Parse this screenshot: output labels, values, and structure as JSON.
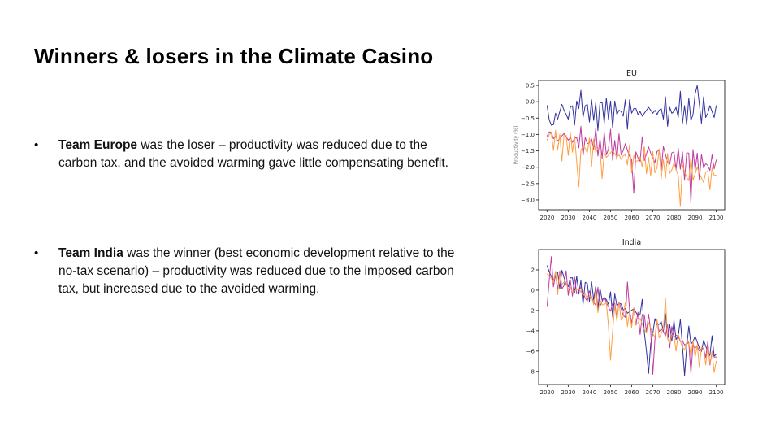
{
  "slide": {
    "title": "Winners & losers in the Climate Casino",
    "bullet_char": "•",
    "bullets": [
      {
        "lead": "Team Europe",
        "text": " was the loser – productivity was reduced due to the carbon tax, and the avoided warming gave little compensating benefit."
      },
      {
        "lead": "Team India",
        "text": " was the winner (best economic development relative to the no-tax scenario) – productivity was reduced due to the imposed carbon tax, but increased due to the avoided warming."
      }
    ]
  },
  "colors": {
    "series_blue": "#32329e",
    "series_magenta": "#c13a9c",
    "series_orange": "#ff9f45",
    "axis": "#3a3a3a",
    "tick_label": "#262626",
    "ylabel_gray": "#808080"
  },
  "chart_data": [
    {
      "type": "line",
      "title": "EU",
      "ylabel": "Productivity (%)",
      "xlabel": "",
      "grid": false,
      "legend": null,
      "x_start": 2020,
      "x_step": 1,
      "xlim": [
        2016,
        2104
      ],
      "ylim": [
        -3.3,
        0.65
      ],
      "xticks": [
        2020,
        2030,
        2040,
        2050,
        2060,
        2070,
        2080,
        2090,
        2100
      ],
      "yticks": [
        0.5,
        0.0,
        -0.5,
        -1.0,
        -1.5,
        -2.0,
        -2.5,
        -3.0
      ],
      "ytick_labels": [
        "0.5",
        "0.0",
        "−0.5",
        "−1.0",
        "−1.5",
        "−2.0",
        "−2.5",
        "−3.0"
      ],
      "series": [
        {
          "name": "series-blue",
          "color": "#32329e",
          "values": [
            -0.12,
            -0.55,
            -0.72,
            -0.7,
            -0.35,
            -0.53,
            -0.3,
            -0.08,
            -0.26,
            -0.39,
            -0.53,
            -0.17,
            -0.12,
            -0.71,
            0.02,
            -0.21,
            0.35,
            -0.48,
            -0.12,
            -0.08,
            -0.62,
            0.06,
            -0.57,
            -0.03,
            -0.88,
            -0.03,
            -0.03,
            -0.66,
            0.11,
            -0.53,
            0.02,
            -0.8,
            0.02,
            -0.39,
            -0.26,
            -0.3,
            -0.44,
            0.06,
            -0.84,
            0.06,
            -0.35,
            -0.21,
            -0.21,
            -0.39,
            -0.3,
            -0.44,
            -0.35,
            -0.26,
            -0.17,
            -0.26,
            -0.35,
            -0.26,
            -0.39,
            -0.26,
            -0.21,
            -0.53,
            0.15,
            -0.75,
            -0.17,
            -0.35,
            -0.3,
            -0.17,
            -0.48,
            0.32,
            -0.66,
            -0.12,
            -0.71,
            0.11,
            -0.57,
            -0.39,
            0.24,
            0.5,
            -0.08,
            -0.66,
            0.15,
            -0.48,
            -0.35,
            -0.12,
            -0.3,
            -0.48,
            -0.12
          ]
        },
        {
          "name": "series-magenta",
          "color": "#c13a9c",
          "values": [
            -1.05,
            -0.92,
            -0.94,
            -1.13,
            -1.05,
            -1.2,
            -1.12,
            -1.04,
            -0.97,
            -1.07,
            -1.17,
            -1.09,
            -1.24,
            -1.12,
            -1.09,
            -1.41,
            -0.75,
            -1.66,
            -1.09,
            -1.28,
            -1.25,
            -1.13,
            -1.46,
            -0.79,
            -1.66,
            -1.13,
            -1.73,
            -0.93,
            -1.62,
            -1.45,
            -0.84,
            -1.79,
            -1.18,
            -1.77,
            -0.98,
            -1.62,
            -1.49,
            -1.28,
            -1.48,
            -1.67,
            -1.77,
            -2.8,
            -1.53,
            -1.72,
            -1.82,
            -1.07,
            -1.8,
            -1.59,
            -1.38,
            -1.57,
            -1.72,
            -1.86,
            -1.52,
            -1.48,
            -2.08,
            -1.37,
            -1.61,
            -1.85,
            -1.91,
            -1.56,
            -1.53,
            -2.08,
            -1.42,
            -2.06,
            -1.53,
            -2.4,
            -1.56,
            -1.57,
            -3.1,
            -1.46,
            -2.1,
            -1.57,
            -2.4,
            -1.6,
            -2.02,
            -1.89,
            -1.95,
            -2.1,
            -1.62,
            -2.05,
            -1.78
          ]
        },
        {
          "name": "series-orange",
          "color": "#ff9f45",
          "values": [
            -1.17,
            -1.0,
            -0.97,
            -1.49,
            -0.87,
            -1.48,
            -0.99,
            -1.81,
            -1.02,
            -1.03,
            -1.64,
            -0.93,
            -1.54,
            -1.05,
            -1.83,
            -2.6,
            -1.48,
            -1.36,
            -1.42,
            -1.56,
            -1.11,
            -1.98,
            -1.14,
            -1.54,
            -1.43,
            -1.44,
            -2.35,
            -1.56,
            -1.7,
            -1.63,
            -1.56,
            -1.49,
            -1.59,
            -1.69,
            -1.62,
            -1.76,
            -1.65,
            -1.62,
            -1.93,
            -1.31,
            -2.18,
            -1.64,
            -1.82,
            -1.8,
            -1.68,
            -2.0,
            -1.37,
            -2.2,
            -1.7,
            -2.27,
            -1.52,
            -2.17,
            -2.02,
            -1.44,
            -2.34,
            -1.76,
            -2.33,
            -1.58,
            -2.19,
            -2.08,
            -1.88,
            -2.07,
            -2.25,
            -3.2,
            -1.94,
            -2.13,
            -2.31,
            -2.41,
            -1.7,
            -2.4,
            -2.2,
            -2.0,
            -2.19,
            -2.33,
            -2.47,
            -2.15,
            -2.12,
            -2.69,
            -2.02,
            -2.25,
            -2.25
          ]
        }
      ]
    },
    {
      "type": "line",
      "title": "India",
      "ylabel": "",
      "xlabel": "",
      "grid": false,
      "legend": null,
      "x_start": 2020,
      "x_step": 1,
      "xlim": [
        2016,
        2104
      ],
      "ylim": [
        -9.3,
        4.0
      ],
      "xticks": [
        2020,
        2030,
        2040,
        2050,
        2060,
        2070,
        2080,
        2090,
        2100
      ],
      "yticks": [
        2,
        0,
        -2,
        -4,
        -6,
        -8
      ],
      "ytick_labels": [
        "2",
        "0",
        "−2",
        "−4",
        "−6",
        "−8"
      ],
      "series": [
        {
          "name": "series-blue",
          "color": "#32329e",
          "values": [
            2.4,
            1.82,
            1.37,
            0.91,
            1.77,
            1.79,
            0.14,
            1.96,
            1.26,
            0.56,
            0.35,
            1.21,
            1.23,
            -0.31,
            1.4,
            -0.38,
            0.96,
            -1.42,
            0.77,
            0.67,
            -1.11,
            0.83,
            -0.95,
            0.4,
            -1.86,
            0.2,
            -0.98,
            -0.71,
            -0.93,
            -1.39,
            -0.17,
            -2.66,
            -0.36,
            -1.54,
            -1.28,
            -1.37,
            -1.95,
            -1.81,
            -2.27,
            -2.12,
            -1.98,
            -1.84,
            -2.18,
            -2.51,
            -2.37,
            -0.9,
            -4.2,
            -6.0,
            -8.2,
            -5.3,
            -4.28,
            -2.81,
            -3.39,
            -3.37,
            -3.11,
            -4.04,
            -2.34,
            -4.72,
            -3.38,
            -5.03,
            -2.97,
            -4.87,
            -4.49,
            -2.9,
            -5.52,
            -8.4,
            -5.6,
            -3.53,
            -5.31,
            -5.05,
            -4.55,
            -5.12,
            -5.7,
            -6.04,
            -4.94,
            -5.51,
            -6.09,
            -6.43,
            -4.49,
            -6.5,
            -6.3
          ]
        },
        {
          "name": "series-magenta",
          "color": "#c13a9c",
          "values": [
            -1.6,
            0.96,
            3.3,
            0.32,
            1.54,
            0.01,
            1.88,
            0.13,
            0.47,
            1.91,
            -0.5,
            0.94,
            -0.59,
            1.29,
            -0.35,
            -0.13,
            0.32,
            -0.22,
            -0.76,
            -1.08,
            -0.08,
            -0.62,
            -1.16,
            -1.48,
            0.29,
            -1.58,
            -1.13,
            -0.68,
            -1.22,
            -1.65,
            -2.08,
            -1.3,
            -1.29,
            -2.82,
            -1.16,
            -1.82,
            -2.47,
            -2.68,
            0.8,
            -1.89,
            -3.31,
            -1.76,
            -3.4,
            -2.18,
            -4.37,
            -2.39,
            -2.49,
            -4.13,
            -2.36,
            -4.0,
            -8.3,
            -4.86,
            -2.98,
            -4.07,
            -3.84,
            -4.06,
            -4.49,
            -3.38,
            -5.68,
            -3.58,
            -4.67,
            -4.44,
            -4.54,
            -5.08,
            -4.96,
            -5.4,
            -5.28,
            -5.16,
            -8.2,
            -5.36,
            -5.68,
            -5.56,
            -5.99,
            -5.76,
            -5.75,
            -6.63,
            -5.08,
            -7.38,
            -6.05,
            -6.59,
            -6.58
          ]
        },
        {
          "name": "series-orange",
          "color": "#ff9f45",
          "values": [
            1.6,
            1.41,
            1.19,
            0.76,
            1.86,
            -0.45,
            1.65,
            0.56,
            0.78,
            0.68,
            0.13,
            0.25,
            -0.19,
            -0.08,
            0.04,
            0.16,
            -0.17,
            -0.5,
            -0.38,
            -0.82,
            -0.59,
            -0.59,
            -1.46,
            0.09,
            -2.22,
            -0.9,
            -1.44,
            -1.44,
            -1.21,
            -3.5,
            -6.9,
            -4.0,
            -1.52,
            -3.06,
            -1.18,
            -2.94,
            -2.6,
            -1.17,
            -3.58,
            -2.15,
            -3.68,
            -1.81,
            -3.45,
            -3.23,
            -2.78,
            -3.33,
            -3.87,
            -4.2,
            -3.2,
            -3.75,
            -4.29,
            -4.62,
            -2.85,
            -4.72,
            -4.27,
            -3.83,
            -0.8,
            -4.81,
            -5.24,
            -4.47,
            -4.46,
            -6.0,
            -4.34,
            -5.0,
            -5.65,
            -5.87,
            -5.09,
            -5.09,
            -6.51,
            -4.97,
            -6.61,
            -5.4,
            -7.59,
            -5.61,
            -5.71,
            -7.36,
            -5.59,
            -7.24,
            -6.02,
            -8.11,
            -7.0
          ]
        }
      ]
    }
  ]
}
